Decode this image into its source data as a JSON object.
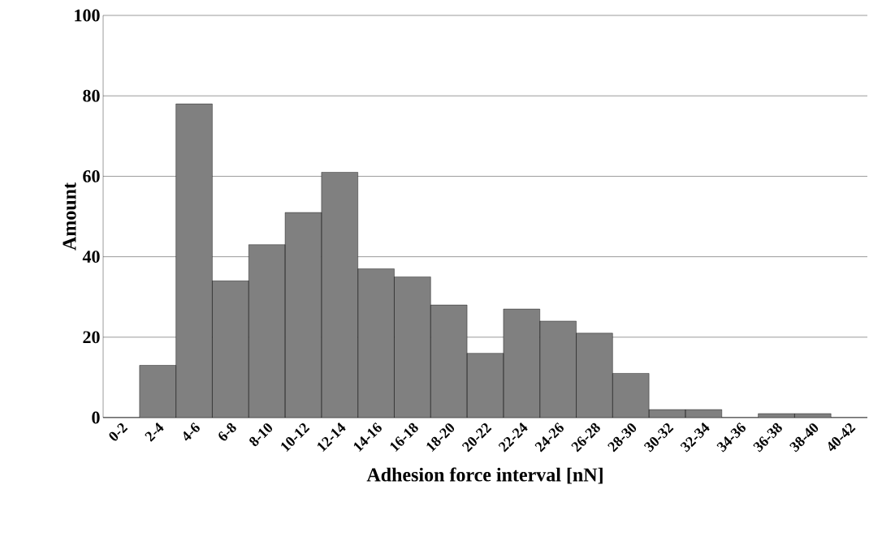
{
  "chart_data": {
    "type": "bar",
    "xlabel": "Adhesion force interval [nN]",
    "ylabel": "Amount",
    "categories": [
      "0-2",
      "2-4",
      "4-6",
      "6-8",
      "8-10",
      "10-12",
      "12-14",
      "14-16",
      "16-18",
      "18-20",
      "20-22",
      "22-24",
      "24-26",
      "26-28",
      "28-30",
      "30-32",
      "32-34",
      "34-36",
      "36-38",
      "38-40",
      "40-42"
    ],
    "values": [
      0,
      13,
      78,
      34,
      43,
      51,
      61,
      37,
      35,
      28,
      16,
      27,
      24,
      21,
      11,
      2,
      2,
      0,
      1,
      1,
      0
    ],
    "color": "#808080",
    "ylim": [
      0,
      100
    ],
    "yticks": [
      0,
      20,
      40,
      60,
      80,
      100
    ],
    "grid": "y"
  }
}
